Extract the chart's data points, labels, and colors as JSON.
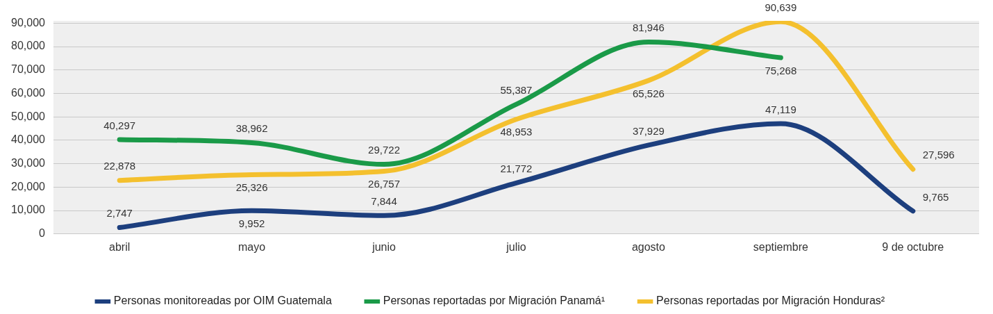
{
  "chart_data": {
    "type": "line",
    "categories": [
      "abril",
      "mayo",
      "junio",
      "julio",
      "agosto",
      "septiembre",
      "9 de octubre"
    ],
    "series": [
      {
        "name": "Personas monitoreadas por OIM Guatemala",
        "color": "#1d3f7e",
        "values": [
          2747,
          9952,
          7844,
          21772,
          37929,
          47119,
          9765
        ],
        "value_labels": [
          "2,747",
          "9,952",
          "7,844",
          "21,772",
          "37,929",
          "47,119",
          "9,765"
        ]
      },
      {
        "name": "Personas reportadas por Migración Panamá¹",
        "color": "#1a9a48",
        "values": [
          40297,
          38962,
          29722,
          55387,
          81946,
          75268,
          null
        ],
        "value_labels": [
          "40,297",
          "38,962",
          "29,722",
          "55,387",
          "81,946",
          "75,268",
          null
        ]
      },
      {
        "name": "Personas reportadas por Migración Honduras²",
        "color": "#f4c02e",
        "values": [
          22878,
          25326,
          26757,
          48953,
          65526,
          90639,
          27596
        ],
        "value_labels": [
          "22,878",
          "25,326",
          "26,757",
          "48,953",
          "65,526",
          "90,639",
          "27,596"
        ]
      }
    ],
    "ylim": [
      0,
      91000
    ],
    "yticks": [
      {
        "value": 0,
        "label": "0"
      },
      {
        "value": 10000,
        "label": "10,000"
      },
      {
        "value": 20000,
        "label": "20,000"
      },
      {
        "value": 30000,
        "label": "30,000"
      },
      {
        "value": 40000,
        "label": "40,000"
      },
      {
        "value": 50000,
        "label": "50,000"
      },
      {
        "value": 60000,
        "label": "60,000"
      },
      {
        "value": 70000,
        "label": "70,000"
      },
      {
        "value": 80000,
        "label": "80,000"
      },
      {
        "value": 90000,
        "label": "90,000"
      }
    ],
    "grid": "y",
    "legend": "bottom",
    "marker": "none",
    "line_style": "solid"
  }
}
